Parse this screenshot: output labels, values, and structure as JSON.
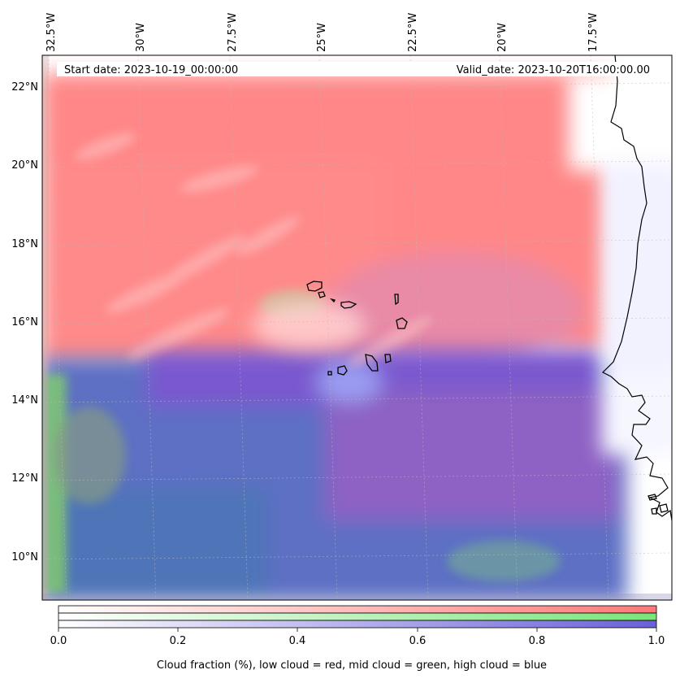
{
  "header": {
    "start_date": "Start date: 2023-10-19_00:00:00",
    "valid_date": "Valid_date: 2023-10-20T16:00:00.00"
  },
  "map": {
    "region": "Eastern Atlantic, Cape Verde islands and West African coast",
    "lon_ticks": [
      "32.5°W",
      "30°W",
      "27.5°W",
      "25°W",
      "22.5°W",
      "20°W",
      "17.5°W"
    ],
    "lat_ticks": [
      "22°N",
      "20°N",
      "18°N",
      "16°N",
      "14°N",
      "12°N",
      "10°N"
    ],
    "gridlines": true,
    "layers": {
      "low_cloud": {
        "color": "#ff8080"
      },
      "mid_cloud": {
        "color": "#80e080"
      },
      "high_cloud": {
        "color": "#6a60d8"
      }
    }
  },
  "colorbar": {
    "ticks": [
      "0.0",
      "0.2",
      "0.4",
      "0.6",
      "0.8",
      "1.0"
    ],
    "caption": "Cloud fraction (%), low cloud = red, mid cloud = green, high cloud = blue",
    "bars": [
      {
        "layer": "low",
        "color": "#ff7b7b"
      },
      {
        "layer": "mid",
        "color": "#7be67b"
      },
      {
        "layer": "high",
        "color": "#6a60d8"
      }
    ]
  }
}
